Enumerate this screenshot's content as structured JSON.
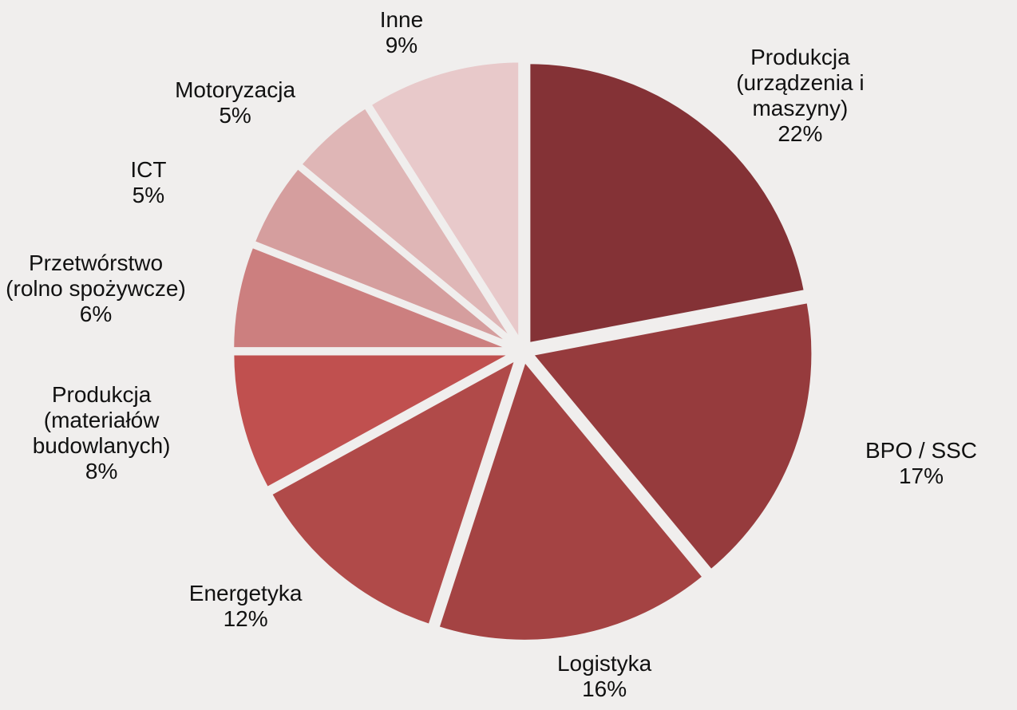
{
  "chart_data": {
    "type": "pie",
    "categories": [
      "Produkcja (urządzenia i maszyny)",
      "BPO / SSC",
      "Logistyka",
      "Energetyka",
      "Produkcja (materiałów budowlanych)",
      "Przetwórstwo (rolno spożywcze)",
      "ICT",
      "Motoryzacja",
      "Inne"
    ],
    "values": [
      22,
      17,
      16,
      12,
      8,
      6,
      5,
      5,
      9
    ],
    "value_labels": [
      "22%",
      "17%",
      "16%",
      "12%",
      "8%",
      "6%",
      "5%",
      "5%",
      "9%"
    ],
    "colors": [
      "#843236",
      "#963b3d",
      "#a44343",
      "#b04a49",
      "#c0504f",
      "#cc7f7f",
      "#d59e9e",
      "#dfb6b6",
      "#e8c9ca"
    ]
  }
}
